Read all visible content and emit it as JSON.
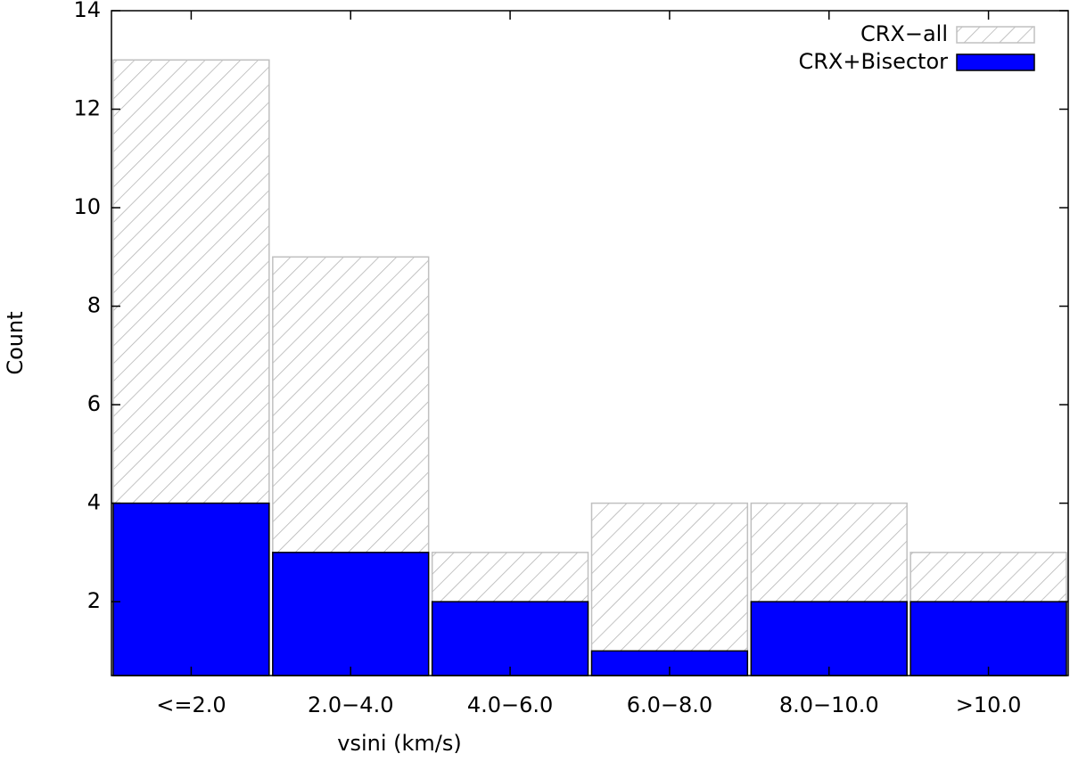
{
  "chart_data": {
    "type": "bar",
    "x_label": "vsini (km/s)",
    "y_label": "Count",
    "categories": [
      "<=2.0",
      "2.0−4.0",
      "4.0−6.0",
      "6.0−8.0",
      "8.0−10.0",
      ">10.0"
    ],
    "series": [
      {
        "name": "CRX−all",
        "color": "#c0c0c0",
        "hatch": true,
        "values": [
          13,
          9,
          3,
          4,
          4,
          3
        ]
      },
      {
        "name": "CRX+Bisector",
        "color": "#0000ff",
        "hatch": false,
        "values": [
          4,
          3,
          2,
          1,
          2,
          2
        ]
      }
    ],
    "ylim": [
      0.5,
      14
    ],
    "yticks": [
      2,
      4,
      6,
      8,
      10,
      12,
      14
    ],
    "legend": "top-right"
  }
}
